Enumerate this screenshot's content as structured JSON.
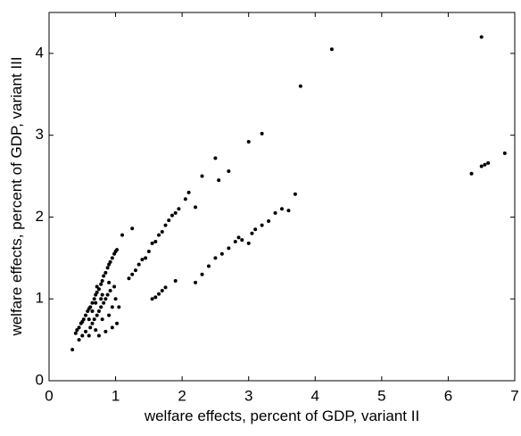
{
  "chart_data": {
    "type": "scatter",
    "xlabel": "welfare effects, percent of GDP, variant II",
    "ylabel": "welfare effects, percent of GDP, variant III",
    "color": "#000000",
    "xlim": [
      0,
      7
    ],
    "ylim": [
      0,
      4.5
    ],
    "xticks": [
      0,
      1,
      2,
      3,
      4,
      5,
      6,
      7
    ],
    "yticks": [
      0,
      1,
      2,
      3,
      4
    ],
    "x": [
      0.35,
      0.4,
      0.42,
      0.45,
      0.48,
      0.5,
      0.52,
      0.55,
      0.58,
      0.6,
      0.62,
      0.65,
      0.68,
      0.7,
      0.72,
      0.75,
      0.78,
      0.8,
      0.82,
      0.85,
      0.88,
      0.9,
      0.92,
      0.95,
      0.98,
      1.0,
      1.02,
      1.1,
      1.25,
      0.45,
      0.5,
      0.55,
      0.6,
      0.62,
      0.65,
      0.68,
      0.7,
      0.72,
      0.75,
      0.78,
      0.8,
      0.82,
      0.85,
      0.88,
      0.9,
      0.92,
      0.95,
      0.98,
      1.0,
      1.02,
      0.75,
      0.85,
      0.65,
      0.7,
      0.8,
      0.9,
      0.95,
      1.05,
      0.6,
      0.72,
      0.78,
      1.2,
      1.25,
      1.3,
      1.35,
      1.4,
      1.45,
      1.5,
      1.55,
      1.6,
      1.65,
      1.7,
      1.75,
      1.8,
      1.85,
      1.9,
      1.95,
      2.05,
      2.1,
      2.2,
      2.3,
      2.5,
      2.55,
      2.7,
      3.0,
      3.2,
      3.78,
      4.25,
      6.5,
      1.55,
      1.6,
      1.65,
      1.7,
      1.75,
      1.9,
      2.2,
      2.3,
      2.4,
      2.5,
      2.6,
      2.7,
      2.8,
      2.85,
      2.9,
      3.0,
      3.05,
      3.1,
      3.2,
      3.3,
      3.4,
      3.5,
      3.6,
      3.7,
      6.35,
      6.5,
      6.55,
      6.6,
      6.85
    ],
    "values": [
      0.38,
      0.58,
      0.62,
      0.65,
      0.7,
      0.72,
      0.75,
      0.8,
      0.85,
      0.88,
      0.9,
      0.95,
      1.0,
      1.05,
      1.08,
      1.12,
      1.18,
      1.22,
      1.28,
      1.32,
      1.38,
      1.42,
      1.45,
      1.5,
      1.55,
      1.58,
      1.6,
      1.78,
      1.86,
      0.5,
      0.55,
      0.6,
      0.55,
      0.65,
      0.7,
      0.75,
      0.62,
      0.8,
      0.85,
      0.9,
      0.75,
      0.95,
      1.0,
      1.05,
      0.8,
      1.1,
      0.9,
      1.15,
      1.0,
      0.7,
      0.55,
      0.6,
      0.85,
      0.95,
      1.05,
      1.2,
      0.65,
      0.9,
      0.75,
      1.15,
      1.0,
      1.25,
      1.3,
      1.35,
      1.42,
      1.48,
      1.5,
      1.58,
      1.68,
      1.7,
      1.78,
      1.82,
      1.9,
      1.96,
      2.02,
      2.05,
      2.1,
      2.22,
      2.3,
      2.12,
      2.5,
      2.72,
      2.45,
      2.56,
      2.92,
      3.02,
      3.6,
      4.05,
      4.2,
      1.0,
      1.02,
      1.06,
      1.1,
      1.14,
      1.22,
      1.2,
      1.3,
      1.4,
      1.5,
      1.55,
      1.62,
      1.7,
      1.75,
      1.72,
      1.68,
      1.8,
      1.85,
      1.9,
      1.95,
      2.05,
      2.1,
      2.08,
      2.28,
      2.53,
      2.62,
      2.64,
      2.66,
      2.78
    ]
  }
}
